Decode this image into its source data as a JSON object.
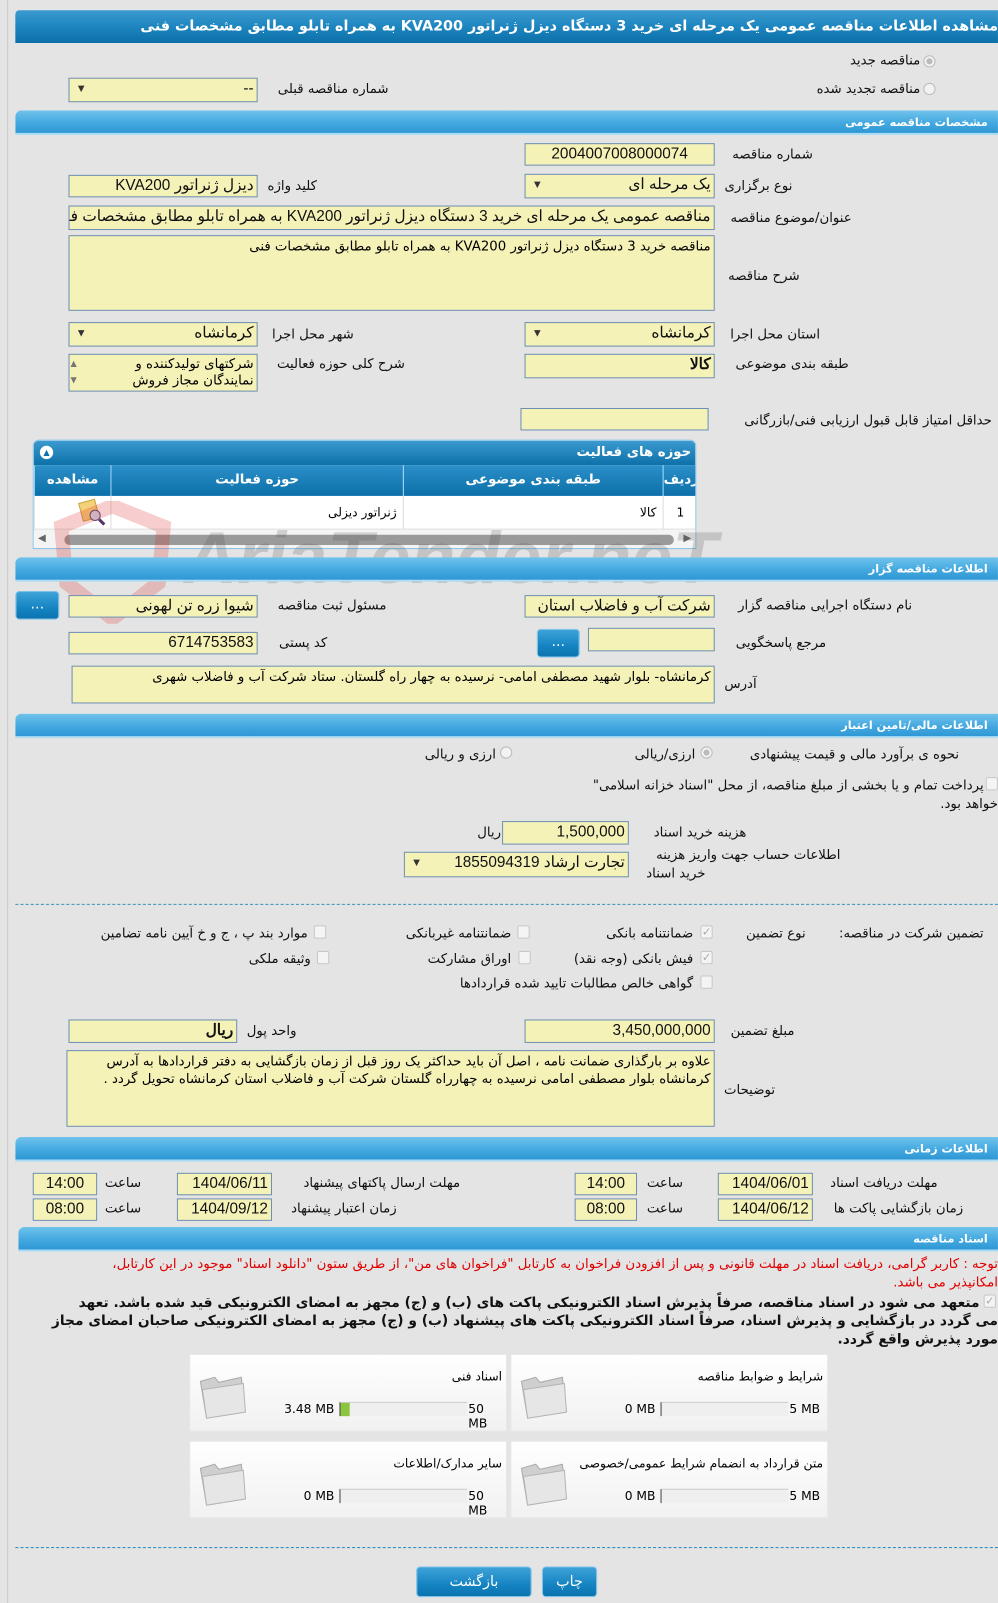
{
  "title": "مشاهده اطلاعات مناقصه عمومی یک مرحله ای خرید 3 دستگاه دیزل ژنراتور KVA200 به همراه تابلو مطابق مشخصات فنی",
  "tender_type": {
    "new_label": "مناقصه جدید",
    "renewed_label": "مناقصه تجدید شده",
    "selected": "new",
    "prev_number_label": "شماره مناقصه قبلی",
    "prev_number_value": "--"
  },
  "general": {
    "header": "مشخصات مناقصه عمومی",
    "number_label": "شماره مناقصه",
    "number_value": "2004007008000074",
    "holding_type_label": "نوع برگزاری",
    "holding_type_value": "یک مرحله ای",
    "keyword_label": "کلید واژه",
    "keyword_value": "دیزل ژنراتور KVA200",
    "subject_label": "عنوان/موضوع مناقصه",
    "subject_value": "مناقصه عمومی یک مرحله ای خرید 3 دستگاه دیزل ژنراتور KVA200 به همراه تابلو مطابق مشخصات فنی",
    "description_label": "شرح مناقصه",
    "description_value": "مناقصه خرید 3 دستگاه دیزل ژنراتور KVA200 به همراه تابلو مطابق مشخصات فنی",
    "province_label": "استان محل اجرا",
    "province_value": "کرمانشاه",
    "city_label": "شهر محل اجرا",
    "city_value": "کرمانشاه",
    "category_label": "طبقه بندی موضوعی",
    "category_value": "کالا",
    "activity_desc_label": "شرح کلی حوزه فعالیت",
    "activity_desc_value": "شرکتهای تولیدکننده و نمایندگان مجاز فروش",
    "min_score_label": "حداقل امتیاز قابل قبول ارزیابی فنی/بازرگانی",
    "min_score_value": ""
  },
  "activity_grid": {
    "title": "حوزه های فعالیت",
    "columns": [
      "ردیف",
      "طبقه بندی موضوعی",
      "حوزه فعالیت",
      "مشاهده"
    ],
    "rows": [
      {
        "index": "1",
        "category": "کالا",
        "field": "ژنراتور دیزلی"
      }
    ]
  },
  "watermark": "AriaTender.neT",
  "organizer": {
    "header": "اطلاعات مناقصه گزار",
    "org_label": "نام دستگاه اجرایی مناقصه گزار",
    "org_value": "شرکت آب و فاضلاب استان",
    "registrar_label": "مسئول ثبت مناقصه",
    "registrar_value": "شیوا زره تن لهونی",
    "reference_label": "مرجع پاسخگویی",
    "reference_value": "",
    "postal_label": "کد پستی",
    "postal_value": "6714753583",
    "address_label": "آدرس",
    "address_value": "کرمانشاه- بلوار شهید مصطفی امامی- نرسیده به چهار راه گلستان. ستاد شرکت  آب و فاضلاب شهری",
    "more_button": "..."
  },
  "financial": {
    "header": "اطلاعات مالی/تامین اعتبار",
    "estimate_label": "نحوه ی برآورد مالی و قیمت پیشنهادی",
    "opt1": "ارزی/ریالی",
    "opt2": "ارزی و ریالی",
    "treasury_text": "پرداخت تمام و یا بخشی از مبلغ مناقصه، از محل \"اسناد خزانه اسلامی\"",
    "treasury_text2": "خواهد بود.",
    "doc_fee_label": "هزینه خرید اسناد",
    "doc_fee_value": "1,500,000",
    "doc_fee_unit": "ریال",
    "account_label1": "اطلاعات حساب جهت واریز هزینه",
    "account_label2": "خرید اسناد",
    "account_value": "تجارت ارشاد 1855094319"
  },
  "guarantee": {
    "label": "تضمین شرکت در مناقصه:",
    "type_label": "نوع تضمین",
    "options": [
      {
        "label": "ضمانتنامه بانکی",
        "checked": true
      },
      {
        "label": "ضمانتنامه غیربانکی",
        "checked": false
      },
      {
        "label": "موارد بند پ ، ج و خ آیین نامه تضامین",
        "checked": false
      },
      {
        "label": "فیش بانکی (وجه نقد)",
        "checked": true
      },
      {
        "label": "اوراق مشارکت",
        "checked": false
      },
      {
        "label": "وثیقه ملکی",
        "checked": false
      },
      {
        "label": "گواهی خالص مطالبات تایید شده قراردادها",
        "checked": false
      }
    ],
    "amount_label": "مبلغ تضمین",
    "amount_value": "3,450,000,000",
    "currency_label": "واحد پول",
    "currency_value": "ریال",
    "notes_label": "توضیحات",
    "notes_value": "علاوه بر بارگذاری ضمانت نامه ، اصل آن باید حداکثر یک روز قبل از زمان بازگشایی به دفتر قراردادها به آدرس کرمانشاه بلوار مصطفی امامی نرسیده به چهارراه گلستان شرکت آب و فاضلاب استان کرمانشاه تحویل گردد ."
  },
  "timing": {
    "header": "اطلاعات زمانی",
    "time_label": "ساعت",
    "doc_deadline_label": "مهلت دریافت اسناد",
    "doc_deadline_date": "1404/06/01",
    "doc_deadline_time": "14:00",
    "submit_deadline_label": "مهلت ارسال پاکتهای پیشنهاد",
    "submit_deadline_date": "1404/06/11",
    "submit_deadline_time": "14:00",
    "opening_label": "زمان بازگشایی پاکت ها",
    "opening_date": "1404/06/12",
    "opening_time": "08:00",
    "validity_label": "زمان اعتبار پیشنهاد",
    "validity_date": "1404/09/12",
    "validity_time": "08:00"
  },
  "documents": {
    "header": "اسناد مناقصه",
    "notice1": "توجه : کاربر گرامی، دریافت اسناد در مهلت قانونی و پس از افزودن فراخوان به کارتابل \"فراخوان های من\"، از طریق ستون \"دانلود اسناد\" موجود در این کارتابل،",
    "notice2": "امکانپذیر می باشد.",
    "commit1": "متعهد می شود در اسناد مناقصه، صرفاً پذیرش اسناد الکترونیکی پاکت های (ب) و (ج) مجهز به امضای الکترونیکی قید شده باشد. تعهد",
    "commit2": "می گردد در بازگشایی و پذیرش اسناد، صرفاً اسناد الکترونیکی پاکت های پیشنهاد (ب) و (ج) مجهز به امضای الکترونیکی صاحبان امضای مجاز",
    "commit3": "مورد پذیرش واقع گردد.",
    "cards": [
      {
        "title": "شرایط و ضوابط مناقصه",
        "current": "0 MB",
        "max": "5 MB",
        "fill": 0
      },
      {
        "title": "اسناد فنی",
        "current": "3.48 MB",
        "max": "50 MB",
        "fill": 0.0696
      },
      {
        "title": "متن قرارداد به انضمام شرایط عمومی/خصوصی",
        "current": "0 MB",
        "max": "5 MB",
        "fill": 0
      },
      {
        "title": "سایر مدارک/اطلاعات",
        "current": "0 MB",
        "max": "50 MB",
        "fill": 0
      }
    ]
  },
  "buttons": {
    "back": "بازگشت",
    "print": "چاپ"
  },
  "colors": {
    "field_bg": "#f5f2b8",
    "header_blue": "#1b83bd",
    "section_blue": "#44a9e0",
    "notice_red": "#e00000",
    "progress_green": "#8bc53f"
  }
}
